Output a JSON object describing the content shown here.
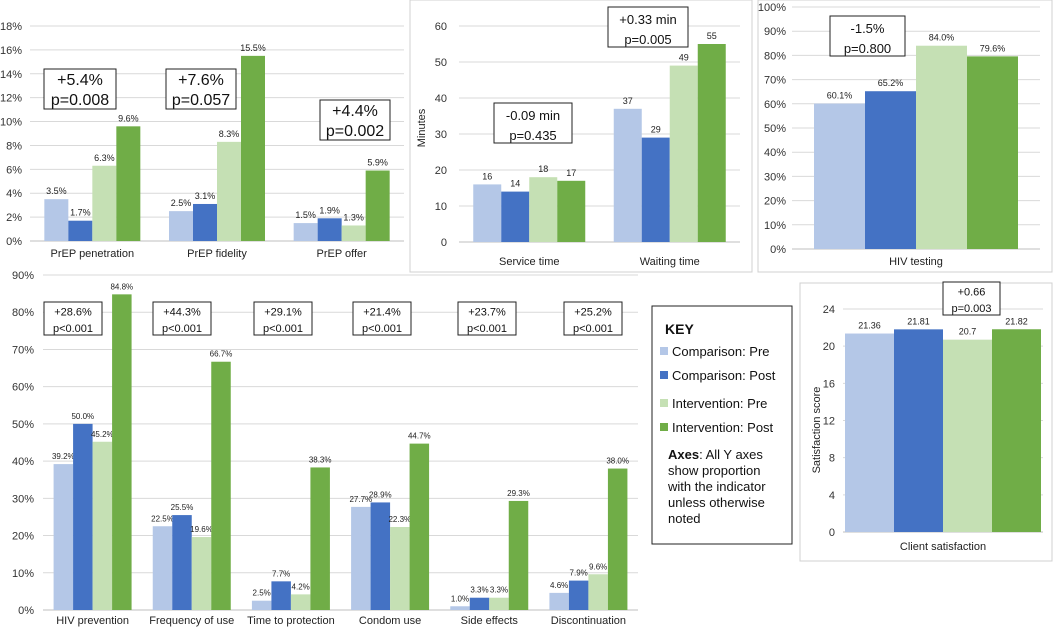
{
  "colors": {
    "comparison_pre": "#b4c7e7",
    "comparison_post": "#4472c4",
    "intervention_pre": "#c5e0b4",
    "intervention_post": "#70ad47",
    "grid": "#d9d9d9"
  },
  "key": {
    "title": "KEY",
    "items": [
      "Comparison: Pre",
      "Comparison: Post",
      "Intervention: Pre",
      "Intervention: Post"
    ],
    "axes_bold": "Axes",
    "axes_lines": [
      ": All Y axes",
      "show proportion",
      "with the indicator",
      "unless otherwise",
      "noted"
    ]
  },
  "chart_data": [
    {
      "id": "prep",
      "type": "bar",
      "title": "",
      "categories": [
        "PrEP penetration",
        "PrEP fidelity",
        "PrEP offer"
      ],
      "series": [
        {
          "name": "Comparison: Pre",
          "values": [
            3.5,
            2.5,
            1.5
          ],
          "labels": [
            "3.5%",
            "2.5%",
            "1.5%"
          ]
        },
        {
          "name": "Comparison: Post",
          "values": [
            1.7,
            3.1,
            1.9
          ],
          "labels": [
            "1.7%",
            "3.1%",
            "1.9%"
          ]
        },
        {
          "name": "Intervention: Pre",
          "values": [
            6.3,
            8.3,
            1.3
          ],
          "labels": [
            "6.3%",
            "8.3%",
            "1.3%"
          ]
        },
        {
          "name": "Intervention: Post",
          "values": [
            9.6,
            15.5,
            5.9
          ],
          "labels": [
            "9.6%",
            "15.5%",
            "5.9%"
          ]
        }
      ],
      "ylim": [
        0,
        18
      ],
      "yticks": [
        "0%",
        "2%",
        "4%",
        "6%",
        "8%",
        "10%",
        "12%",
        "14%",
        "16%",
        "18%"
      ],
      "ylabel": "",
      "xlabel": "",
      "annotations": [
        {
          "lines": [
            "+5.4%",
            "p=0.008"
          ]
        },
        {
          "lines": [
            "+7.6%",
            "p=0.057"
          ]
        },
        {
          "lines": [
            "+4.4%",
            "p=0.002"
          ]
        }
      ]
    },
    {
      "id": "time",
      "type": "bar",
      "categories": [
        "Service time",
        "Waiting time"
      ],
      "series": [
        {
          "name": "Comparison: Pre",
          "values": [
            16,
            37
          ],
          "labels": [
            "16",
            "37"
          ]
        },
        {
          "name": "Comparison: Post",
          "values": [
            14,
            29
          ],
          "labels": [
            "14",
            "29"
          ]
        },
        {
          "name": "Intervention: Pre",
          "values": [
            18,
            49
          ],
          "labels": [
            "18",
            "49"
          ]
        },
        {
          "name": "Intervention: Post",
          "values": [
            17,
            55
          ],
          "labels": [
            "17",
            "55"
          ]
        }
      ],
      "ylim": [
        0,
        60
      ],
      "yticks": [
        "0",
        "10",
        "20",
        "30",
        "40",
        "50",
        "60"
      ],
      "ylabel": "Minutes",
      "annotations": [
        {
          "lines": [
            "-0.09 min",
            "p=0.435"
          ]
        },
        {
          "lines": [
            "+0.33 min",
            "p=0.005"
          ]
        }
      ]
    },
    {
      "id": "hivtest",
      "type": "bar",
      "categories": [
        "HIV testing"
      ],
      "series": [
        {
          "name": "Comparison: Pre",
          "values": [
            60.1
          ],
          "labels": [
            "60.1%"
          ]
        },
        {
          "name": "Comparison: Post",
          "values": [
            65.2
          ],
          "labels": [
            "65.2%"
          ]
        },
        {
          "name": "Intervention: Pre",
          "values": [
            84.0
          ],
          "labels": [
            "84.0%"
          ]
        },
        {
          "name": "Intervention: Post",
          "values": [
            79.6
          ],
          "labels": [
            "79.6%"
          ]
        }
      ],
      "ylim": [
        0,
        100
      ],
      "yticks": [
        "0%",
        "10%",
        "20%",
        "30%",
        "40%",
        "50%",
        "60%",
        "70%",
        "80%",
        "90%",
        "100%"
      ],
      "annotations": [
        {
          "lines": [
            "-1.5%",
            "p=0.800"
          ]
        }
      ]
    },
    {
      "id": "knowledge",
      "type": "bar",
      "categories": [
        "HIV prevention",
        "Frequency of use",
        "Time to protection",
        "Condom use",
        "Side effects",
        "Discontinuation"
      ],
      "series": [
        {
          "name": "Comparison: Pre",
          "values": [
            39.2,
            22.5,
            2.5,
            27.7,
            1.0,
            4.6
          ],
          "labels": [
            "39.2%",
            "22.5%",
            "2.5%",
            "27.7%",
            "1.0%",
            "4.6%"
          ]
        },
        {
          "name": "Comparison: Post",
          "values": [
            50.0,
            25.5,
            7.7,
            28.9,
            3.3,
            7.9
          ],
          "labels": [
            "50.0%",
            "25.5%",
            "7.7%",
            "28.9%",
            "3.3%",
            "7.9%"
          ]
        },
        {
          "name": "Intervention: Pre",
          "values": [
            45.2,
            19.6,
            4.2,
            22.3,
            3.3,
            9.6
          ],
          "labels": [
            "45.2%",
            "19.6%",
            "4.2%",
            "22.3%",
            "3.3%",
            "9.6%"
          ]
        },
        {
          "name": "Intervention: Post",
          "values": [
            84.8,
            66.7,
            38.3,
            44.7,
            29.3,
            38.0
          ],
          "labels": [
            "84.8%",
            "66.7%",
            "38.3%",
            "44.7%",
            "29.3%",
            "38.0%"
          ]
        }
      ],
      "ylim": [
        0,
        90
      ],
      "yticks": [
        "0%",
        "10%",
        "20%",
        "30%",
        "40%",
        "50%",
        "60%",
        "70%",
        "80%",
        "90%"
      ],
      "annotations": [
        {
          "lines": [
            "+28.6%",
            "p<0.001"
          ]
        },
        {
          "lines": [
            "+44.3%",
            "p<0.001"
          ]
        },
        {
          "lines": [
            "+29.1%",
            "p<0.001"
          ]
        },
        {
          "lines": [
            "+21.4%",
            "p<0.001"
          ]
        },
        {
          "lines": [
            "+23.7%",
            "p<0.001"
          ]
        },
        {
          "lines": [
            "+25.2%",
            "p<0.001"
          ]
        }
      ]
    },
    {
      "id": "satisfaction",
      "type": "bar",
      "categories": [
        "Client satisfaction"
      ],
      "series": [
        {
          "name": "Comparison: Pre",
          "values": [
            21.36
          ],
          "labels": [
            "21.36"
          ]
        },
        {
          "name": "Comparison: Post",
          "values": [
            21.81
          ],
          "labels": [
            "21.81"
          ]
        },
        {
          "name": "Intervention: Pre",
          "values": [
            20.7
          ],
          "labels": [
            "20.7"
          ]
        },
        {
          "name": "Intervention: Post",
          "values": [
            21.82
          ],
          "labels": [
            "21.82"
          ]
        }
      ],
      "ylim": [
        0,
        24
      ],
      "yticks": [
        "0",
        "4",
        "8",
        "12",
        "16",
        "20",
        "24"
      ],
      "ylabel": "Satisfaction score",
      "annotations": [
        {
          "lines": [
            "+0.66",
            "p=0.003"
          ]
        }
      ]
    }
  ]
}
